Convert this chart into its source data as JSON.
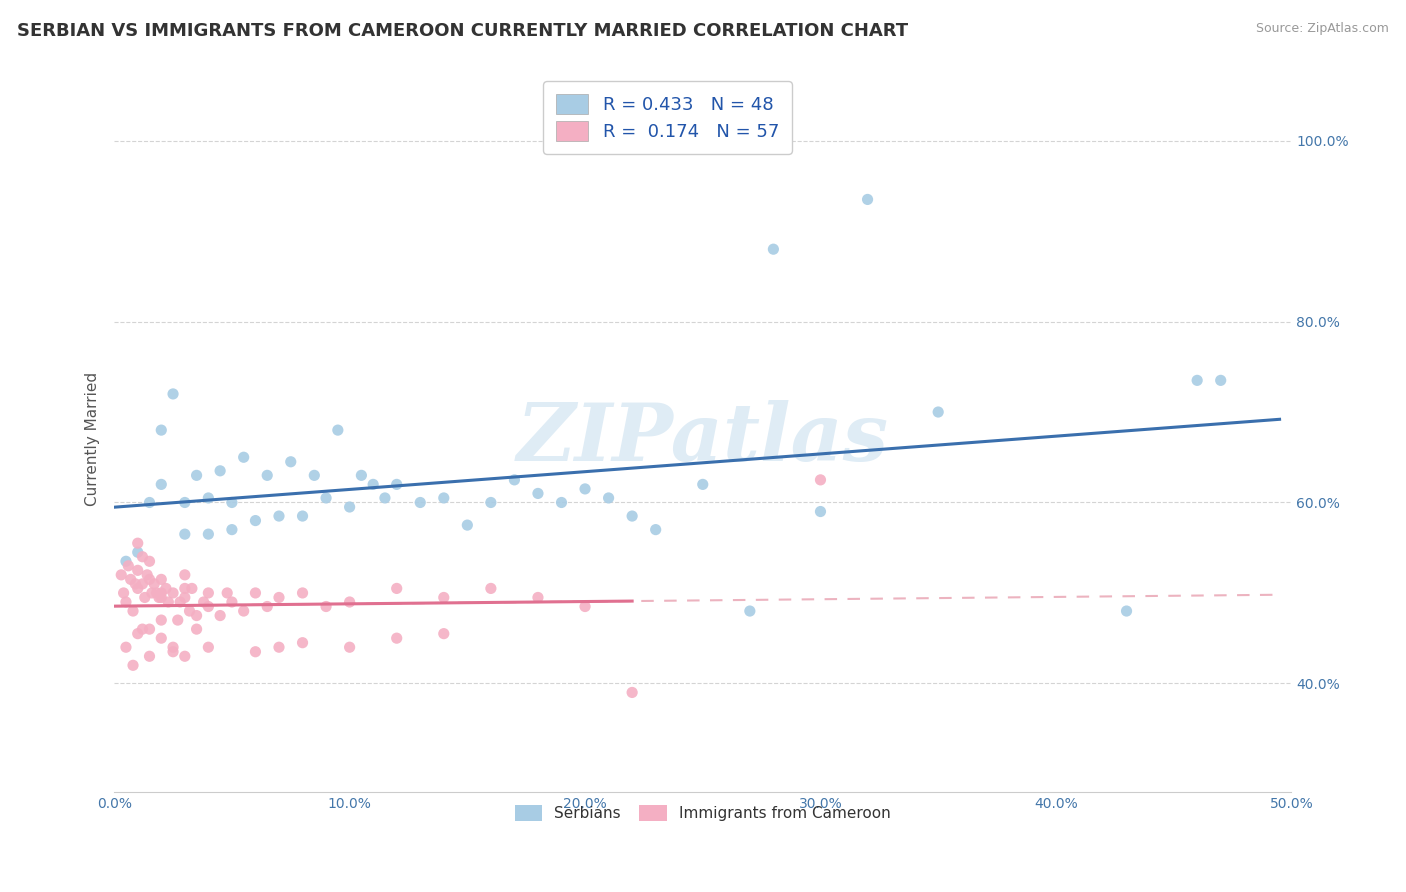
{
  "title": "SERBIAN VS IMMIGRANTS FROM CAMEROON CURRENTLY MARRIED CORRELATION CHART",
  "source": "Source: ZipAtlas.com",
  "ylabel_label": "Currently Married",
  "legend1_label": "Serbians",
  "legend2_label": "Immigrants from Cameroon",
  "R1": 0.433,
  "N1": 48,
  "R2": 0.174,
  "N2": 57,
  "color1": "#a8cce4",
  "color2": "#f4afc3",
  "line1_color": "#3a6fad",
  "line2_color": "#e07090",
  "line2_dash_color": "#e8a0b0",
  "xlim": [
    0.0,
    0.5
  ],
  "ylim": [
    0.28,
    1.06
  ],
  "xtick_vals": [
    0.0,
    0.1,
    0.2,
    0.3,
    0.4,
    0.5
  ],
  "xtick_labels": [
    "0.0%",
    "10.0%",
    "20.0%",
    "30.0%",
    "40.0%",
    "50.0%"
  ],
  "ytick_labels": [
    "40.0%",
    "60.0%",
    "80.0%",
    "100.0%"
  ],
  "ytick_vals": [
    0.4,
    0.6,
    0.8,
    1.0
  ],
  "watermark": "ZIPatlas",
  "serbian_x": [
    0.005,
    0.01,
    0.015,
    0.02,
    0.02,
    0.025,
    0.03,
    0.03,
    0.035,
    0.04,
    0.04,
    0.045,
    0.05,
    0.05,
    0.055,
    0.06,
    0.065,
    0.07,
    0.075,
    0.08,
    0.085,
    0.09,
    0.095,
    0.1,
    0.105,
    0.11,
    0.115,
    0.12,
    0.13,
    0.14,
    0.15,
    0.16,
    0.17,
    0.18,
    0.19,
    0.2,
    0.21,
    0.22,
    0.23,
    0.25,
    0.27,
    0.28,
    0.3,
    0.32,
    0.35,
    0.43,
    0.46,
    0.47
  ],
  "serbian_y": [
    0.535,
    0.545,
    0.6,
    0.62,
    0.68,
    0.72,
    0.565,
    0.6,
    0.63,
    0.565,
    0.605,
    0.635,
    0.57,
    0.6,
    0.65,
    0.58,
    0.63,
    0.585,
    0.645,
    0.585,
    0.63,
    0.605,
    0.68,
    0.595,
    0.63,
    0.62,
    0.605,
    0.62,
    0.6,
    0.605,
    0.575,
    0.6,
    0.625,
    0.61,
    0.6,
    0.615,
    0.605,
    0.585,
    0.57,
    0.62,
    0.48,
    0.88,
    0.59,
    0.935,
    0.7,
    0.48,
    0.735,
    0.735
  ],
  "cam_x": [
    0.003,
    0.004,
    0.005,
    0.006,
    0.007,
    0.008,
    0.009,
    0.01,
    0.01,
    0.01,
    0.012,
    0.012,
    0.013,
    0.014,
    0.015,
    0.015,
    0.015,
    0.016,
    0.017,
    0.018,
    0.019,
    0.02,
    0.02,
    0.02,
    0.02,
    0.022,
    0.023,
    0.025,
    0.025,
    0.027,
    0.028,
    0.03,
    0.03,
    0.03,
    0.032,
    0.033,
    0.035,
    0.038,
    0.04,
    0.04,
    0.045,
    0.048,
    0.05,
    0.055,
    0.06,
    0.065,
    0.07,
    0.08,
    0.09,
    0.1,
    0.12,
    0.14,
    0.16,
    0.18,
    0.2,
    0.22,
    0.3
  ],
  "cam_y": [
    0.52,
    0.5,
    0.49,
    0.53,
    0.515,
    0.48,
    0.51,
    0.555,
    0.525,
    0.505,
    0.54,
    0.51,
    0.495,
    0.52,
    0.46,
    0.535,
    0.515,
    0.5,
    0.51,
    0.5,
    0.495,
    0.5,
    0.515,
    0.495,
    0.47,
    0.505,
    0.49,
    0.435,
    0.5,
    0.47,
    0.49,
    0.52,
    0.505,
    0.495,
    0.48,
    0.505,
    0.475,
    0.49,
    0.5,
    0.485,
    0.475,
    0.5,
    0.49,
    0.48,
    0.5,
    0.485,
    0.495,
    0.5,
    0.485,
    0.49,
    0.505,
    0.495,
    0.505,
    0.495,
    0.485,
    0.39,
    0.625
  ],
  "cam_extra_x": [
    0.005,
    0.008,
    0.01,
    0.012,
    0.015,
    0.02,
    0.025,
    0.03,
    0.035,
    0.04,
    0.06,
    0.07,
    0.08,
    0.1,
    0.12,
    0.14
  ],
  "cam_extra_y": [
    0.44,
    0.42,
    0.455,
    0.46,
    0.43,
    0.45,
    0.44,
    0.43,
    0.46,
    0.44,
    0.435,
    0.44,
    0.445,
    0.44,
    0.45,
    0.455
  ],
  "background_color": "#ffffff",
  "grid_color": "#d0d0d0",
  "title_fontsize": 13,
  "axis_label_fontsize": 11,
  "tick_fontsize": 10,
  "legend_line1_text": "R = 0.433   N = 48",
  "legend_line2_text": "R =  0.174   N = 57"
}
